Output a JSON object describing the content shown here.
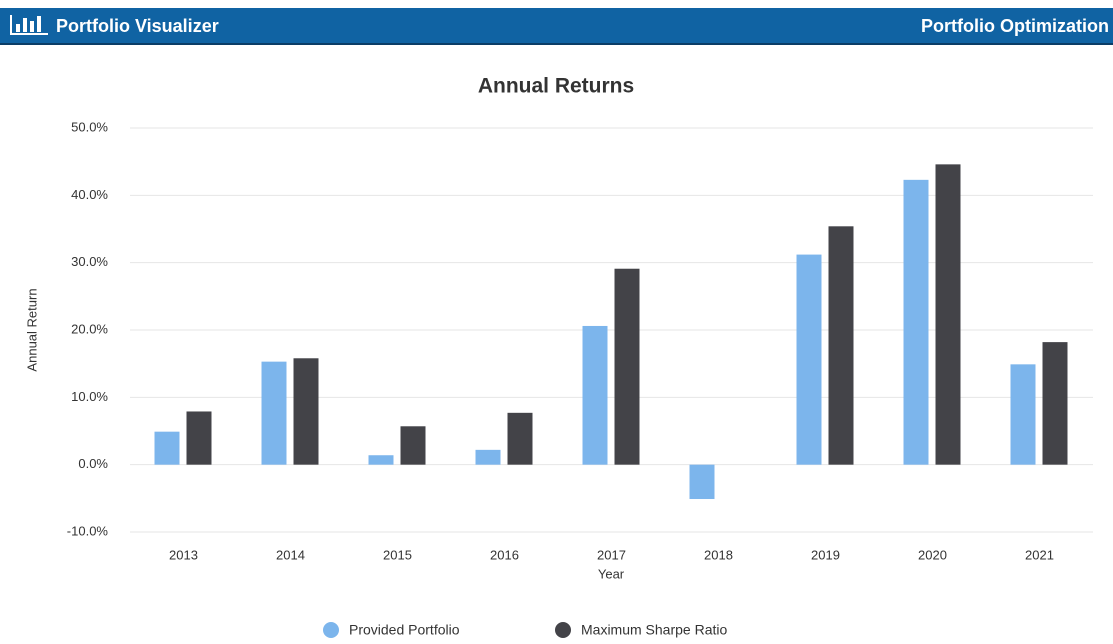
{
  "header": {
    "brand": "Portfolio Visualizer",
    "page": "Portfolio Optimization"
  },
  "chart_data": {
    "type": "bar",
    "title": "Annual Returns",
    "x_label": "Year",
    "y_label": "Annual Return",
    "categories": [
      "2013",
      "2014",
      "2015",
      "2016",
      "2017",
      "2018",
      "2019",
      "2020",
      "2021"
    ],
    "series": [
      {
        "name": "Provided Portfolio",
        "color": "#7cb5ec",
        "values": [
          4.9,
          15.3,
          1.4,
          2.2,
          20.6,
          -5.1,
          31.2,
          42.3,
          14.9
        ]
      },
      {
        "name": "Maximum Sharpe Ratio",
        "color": "#434348",
        "values": [
          7.9,
          15.8,
          5.7,
          7.7,
          29.1,
          0,
          35.4,
          44.6,
          18.2
        ]
      }
    ],
    "ylim": [
      -10,
      50
    ],
    "yticks": [
      {
        "value": -10,
        "label": "-10.0%"
      },
      {
        "value": 0,
        "label": "0.0%"
      },
      {
        "value": 10,
        "label": "10.0%"
      },
      {
        "value": 20,
        "label": "20.0%"
      },
      {
        "value": 30,
        "label": "30.0%"
      },
      {
        "value": 40,
        "label": "40.0%"
      },
      {
        "value": 50,
        "label": "50.0%"
      }
    ],
    "grid": true,
    "legend": "bottom"
  }
}
